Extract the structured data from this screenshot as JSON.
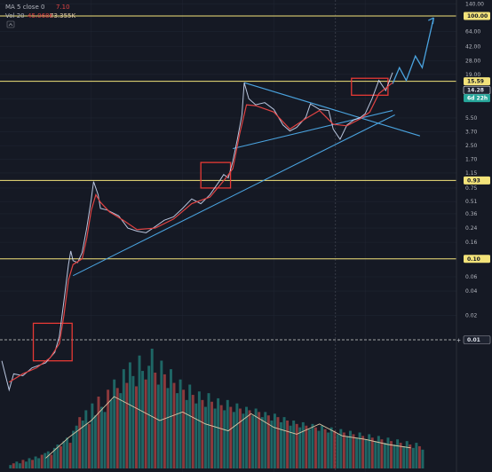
{
  "legend": {
    "ma_label": "MA 5 close 0",
    "ma_value": "7.10",
    "vol_label": "Vol 20",
    "vol_value_a": "45.068K",
    "vol_value_b": "73.355K"
  },
  "colors": {
    "background": "#151924",
    "grid": "#1f2431",
    "price_line": "#d6e4ff",
    "ma_line": "#e04343",
    "trendline": "#4aa3df",
    "horizontal_level": "#f3e37a",
    "highlight_box": "#e53935",
    "volume_up": "#26a69a",
    "volume_down": "#ef5350",
    "volume_ma": "#e0c9a6",
    "badge_current": "#26a69a"
  },
  "chart_data": {
    "type": "line",
    "scale": "log",
    "y_ticks": [
      "140.00",
      "64.00",
      "42.00",
      "28.00",
      "19.00",
      "9.50",
      "5.50",
      "3.70",
      "2.50",
      "1.70",
      "1.15",
      "0.75",
      "0.51",
      "0.36",
      "0.24",
      "0.16",
      "0.06",
      "0.04",
      "0.02"
    ],
    "level_labels": [
      {
        "value": "100.00"
      },
      {
        "value": "15.59"
      },
      {
        "value": "14.28"
      },
      {
        "value": "6d 22h"
      },
      {
        "value": "0.93"
      },
      {
        "value": "0.10"
      },
      {
        "value": "0.01"
      }
    ],
    "horizontal_levels": [
      100.0,
      15.59,
      0.93,
      0.1,
      0.01
    ],
    "price_series": [
      [
        0.004,
        0.0055
      ],
      [
        0.02,
        0.0024
      ],
      [
        0.03,
        0.0038
      ],
      [
        0.05,
        0.0036
      ],
      [
        0.07,
        0.0045
      ],
      [
        0.1,
        0.0052
      ],
      [
        0.12,
        0.007
      ],
      [
        0.13,
        0.011
      ],
      [
        0.14,
        0.03
      ],
      [
        0.15,
        0.085
      ],
      [
        0.155,
        0.125
      ],
      [
        0.16,
        0.095
      ],
      [
        0.17,
        0.09
      ],
      [
        0.18,
        0.12
      ],
      [
        0.19,
        0.24
      ],
      [
        0.2,
        0.55
      ],
      [
        0.205,
        0.9
      ],
      [
        0.215,
        0.62
      ],
      [
        0.22,
        0.42
      ],
      [
        0.235,
        0.4
      ],
      [
        0.26,
        0.34
      ],
      [
        0.28,
        0.24
      ],
      [
        0.3,
        0.22
      ],
      [
        0.32,
        0.21
      ],
      [
        0.34,
        0.25
      ],
      [
        0.36,
        0.3
      ],
      [
        0.38,
        0.33
      ],
      [
        0.4,
        0.42
      ],
      [
        0.42,
        0.55
      ],
      [
        0.44,
        0.48
      ],
      [
        0.46,
        0.62
      ],
      [
        0.48,
        0.9
      ],
      [
        0.49,
        1.1
      ],
      [
        0.5,
        1.0
      ],
      [
        0.51,
        1.6
      ],
      [
        0.52,
        3.0
      ],
      [
        0.53,
        6.0
      ],
      [
        0.535,
        15.0
      ],
      [
        0.545,
        9.5
      ],
      [
        0.56,
        8.0
      ],
      [
        0.58,
        8.5
      ],
      [
        0.6,
        7.0
      ],
      [
        0.62,
        4.5
      ],
      [
        0.635,
        3.8
      ],
      [
        0.65,
        4.2
      ],
      [
        0.67,
        5.6
      ],
      [
        0.68,
        8.2
      ],
      [
        0.7,
        7.0
      ],
      [
        0.72,
        6.8
      ],
      [
        0.73,
        4.0
      ],
      [
        0.745,
        3.0
      ],
      [
        0.76,
        4.5
      ],
      [
        0.775,
        5.2
      ],
      [
        0.79,
        5.6
      ],
      [
        0.8,
        6.2
      ],
      [
        0.815,
        9.5
      ],
      [
        0.83,
        16.0
      ],
      [
        0.845,
        12.0
      ],
      [
        0.86,
        20.0
      ],
      [
        0.875,
        15.0
      ],
      [
        0.89,
        32.0
      ],
      [
        0.9,
        23.0
      ],
      [
        0.92,
        72.0
      ]
    ],
    "ma_series": [
      [
        0.02,
        0.003
      ],
      [
        0.05,
        0.0038
      ],
      [
        0.08,
        0.0045
      ],
      [
        0.11,
        0.006
      ],
      [
        0.13,
        0.009
      ],
      [
        0.14,
        0.02
      ],
      [
        0.15,
        0.055
      ],
      [
        0.16,
        0.085
      ],
      [
        0.18,
        0.1
      ],
      [
        0.19,
        0.18
      ],
      [
        0.2,
        0.4
      ],
      [
        0.21,
        0.62
      ],
      [
        0.22,
        0.5
      ],
      [
        0.24,
        0.38
      ],
      [
        0.27,
        0.3
      ],
      [
        0.3,
        0.23
      ],
      [
        0.34,
        0.24
      ],
      [
        0.38,
        0.31
      ],
      [
        0.42,
        0.48
      ],
      [
        0.46,
        0.58
      ],
      [
        0.49,
        0.92
      ],
      [
        0.51,
        1.3
      ],
      [
        0.525,
        3.5
      ],
      [
        0.54,
        8.0
      ],
      [
        0.56,
        7.8
      ],
      [
        0.6,
        6.5
      ],
      [
        0.635,
        4.0
      ],
      [
        0.67,
        5.4
      ],
      [
        0.7,
        6.8
      ],
      [
        0.73,
        4.6
      ],
      [
        0.76,
        4.4
      ],
      [
        0.79,
        5.4
      ],
      [
        0.81,
        6.5
      ],
      [
        0.83,
        11.0
      ],
      [
        0.86,
        15.0
      ]
    ],
    "trendlines": [
      {
        "from": [
          0.16,
          0.062
        ],
        "to": [
          0.865,
          6.0
        ]
      },
      {
        "from": [
          0.535,
          15.0
        ],
        "to": [
          0.92,
          3.3
        ]
      },
      {
        "from": [
          0.51,
          2.3
        ],
        "to": [
          0.86,
          6.8
        ]
      }
    ],
    "projection": [
      [
        0.86,
        14.5
      ],
      [
        0.875,
        23.0
      ],
      [
        0.89,
        16.0
      ],
      [
        0.91,
        32.0
      ],
      [
        0.925,
        23.0
      ],
      [
        0.95,
        95.0
      ]
    ],
    "highlight_boxes": [
      {
        "x": [
          0.073,
          0.158
        ],
        "y": [
          0.0055,
          0.016
        ]
      },
      {
        "x": [
          0.44,
          0.505
        ],
        "y": [
          0.75,
          1.55
        ]
      },
      {
        "x": [
          0.77,
          0.85
        ],
        "y": [
          10.5,
          17.0
        ]
      }
    ],
    "volume": [
      2,
      3,
      4,
      3,
      5,
      4,
      6,
      5,
      7,
      6,
      8,
      9,
      10,
      8,
      12,
      14,
      13,
      16,
      18,
      15,
      22,
      25,
      30,
      28,
      34,
      26,
      38,
      31,
      42,
      36,
      33,
      46,
      40,
      52,
      47,
      44,
      58,
      50,
      62,
      54,
      48,
      66,
      57,
      52,
      60,
      70,
      56,
      49,
      63,
      55,
      47,
      58,
      50,
      44,
      52,
      46,
      40,
      49,
      43,
      38,
      45,
      40,
      36,
      44,
      39,
      35,
      41,
      37,
      34,
      40,
      36,
      33,
      38,
      35,
      32,
      36,
      34,
      31,
      35,
      33,
      30,
      33,
      31,
      28,
      32,
      30,
      27,
      30,
      28,
      25,
      28,
      26,
      24,
      27,
      25,
      23,
      26,
      24,
      22,
      25,
      23,
      21,
      24,
      22,
      20,
      23,
      21,
      19,
      22,
      20,
      18,
      21,
      19,
      17,
      20,
      18,
      16,
      19,
      17,
      15,
      18,
      16,
      14,
      17,
      15,
      13,
      16,
      14,
      12,
      15,
      13,
      11
    ],
    "volume_ma": [
      [
        0.1,
        6
      ],
      [
        0.15,
        18
      ],
      [
        0.2,
        28
      ],
      [
        0.25,
        42
      ],
      [
        0.3,
        35
      ],
      [
        0.35,
        28
      ],
      [
        0.4,
        33
      ],
      [
        0.45,
        26
      ],
      [
        0.5,
        22
      ],
      [
        0.55,
        32
      ],
      [
        0.6,
        24
      ],
      [
        0.65,
        20
      ],
      [
        0.7,
        26
      ],
      [
        0.75,
        19
      ],
      [
        0.8,
        17
      ],
      [
        0.85,
        14
      ],
      [
        0.9,
        12
      ]
    ]
  }
}
